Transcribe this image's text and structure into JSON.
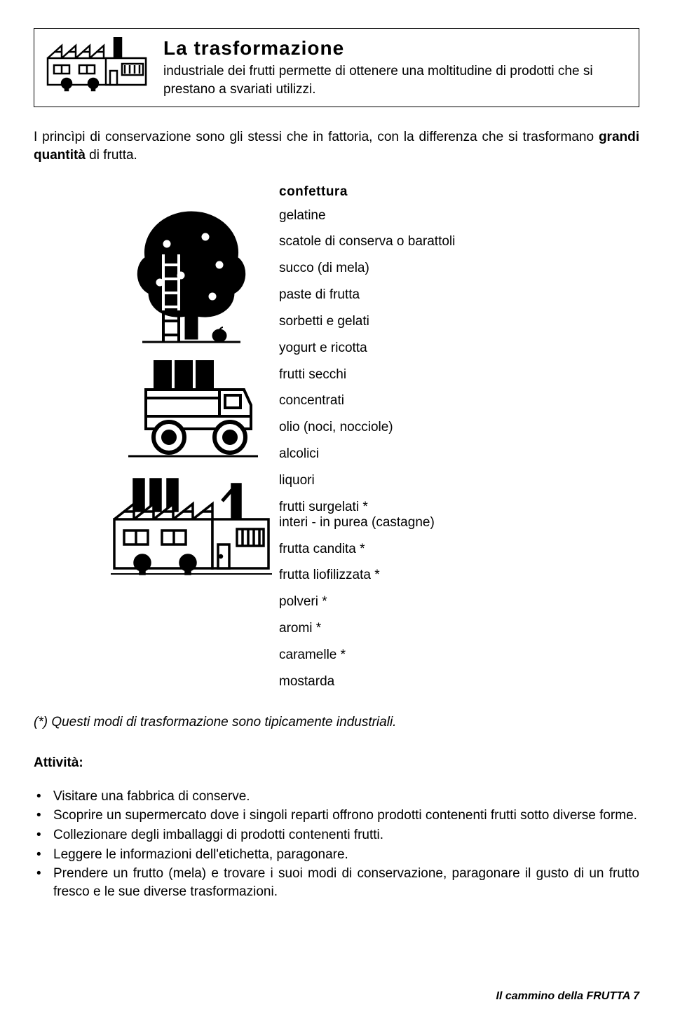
{
  "header": {
    "title": "La trasformazione",
    "subtitle": "industriale dei frutti permette di ottenere una moltitudine di prodotti che si prestano a svariati utilizzi."
  },
  "intro": {
    "pre": "I princìpi di conservazione sono gli stessi che in fattoria, con la differenza che si trasformano ",
    "bold": "grandi quantità",
    "post": " di frutta."
  },
  "products": {
    "heading": "confettura",
    "items": [
      "gelatine",
      "scatole di conserva o barattoli",
      "succo (di mela)",
      "paste di frutta",
      "sorbetti e gelati",
      "yogurt e ricotta",
      "frutti secchi",
      "concentrati",
      "olio (noci, nocciole)",
      "alcolici",
      "liquori",
      "frutti surgelati *\ninteri - in purea (castagne)",
      "frutta candita *",
      "frutta liofilizzata *",
      "polveri *",
      "aromi *",
      "caramelle *",
      "mostarda"
    ]
  },
  "footnote": "(*) Questi modi di trasformazione sono tipicamente industriali.",
  "activities": {
    "heading": "Attività:",
    "items": [
      "Visitare una fabbrica di conserve.",
      "Scoprire un supermercato dove i singoli reparti offrono prodotti contenenti  frutti sotto diverse forme.",
      "Collezionare degli imballaggi di prodotti contenenti frutti.",
      "Leggere le informazioni dell'etichetta, paragonare.",
      "Prendere un frutto (mela) e trovare i suoi modi di conservazione, paragonare il gusto di un frutto fresco e le sue diverse trasformazioni."
    ]
  },
  "footer": "Il cammino della FRUTTA 7",
  "icons": {
    "factory": "factory-icon",
    "tree": "tree-icon",
    "truck": "truck-icon"
  },
  "colors": {
    "text": "#000000",
    "background": "#ffffff",
    "border": "#000000"
  }
}
